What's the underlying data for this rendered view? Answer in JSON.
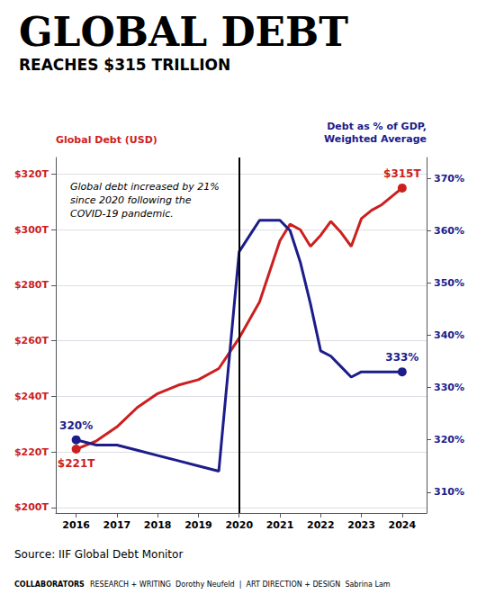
{
  "chart_data": {
    "type": "line",
    "title": "GLOBAL DEBT",
    "subtitle": "REACHES $315 TRILLION",
    "x": [
      2016,
      2016.5,
      2017,
      2017.5,
      2018,
      2018.5,
      2019,
      2019.5,
      2020,
      2020.5,
      2021,
      2021.25,
      2021.5,
      2021.75,
      2022,
      2022.25,
      2022.5,
      2022.75,
      2023,
      2023.25,
      2023.5,
      2023.75,
      2024
    ],
    "xlim": [
      2015.5,
      2024.6
    ],
    "xticks": [
      2016,
      2017,
      2018,
      2019,
      2020,
      2021,
      2022,
      2023,
      2024
    ],
    "ylabel": "Global Debt (USD)",
    "ylim": [
      198,
      326
    ],
    "yticks": [
      {
        "value": 200,
        "label": "$200T"
      },
      {
        "value": 220,
        "label": "$220T"
      },
      {
        "value": 240,
        "label": "$240T"
      },
      {
        "value": 260,
        "label": "$260T"
      },
      {
        "value": 280,
        "label": "$280T"
      },
      {
        "value": 300,
        "label": "$300T"
      },
      {
        "value": 320,
        "label": "$320T"
      }
    ],
    "y2label": "Debt as % of GDP,\nWeighted Average",
    "y2lim": [
      306,
      374
    ],
    "y2ticks": [
      {
        "value": 310,
        "label": "310%"
      },
      {
        "value": 320,
        "label": "320%"
      },
      {
        "value": 330,
        "label": "330%"
      },
      {
        "value": 340,
        "label": "340%"
      },
      {
        "value": 350,
        "label": "350%"
      },
      {
        "value": 360,
        "label": "360%"
      },
      {
        "value": 370,
        "label": "370%"
      }
    ],
    "grid": true,
    "series": [
      {
        "color": "#cc1f1f",
        "values": [
          221,
          224,
          229,
          236,
          241,
          244,
          246,
          250,
          261,
          274,
          296,
          302,
          300,
          294,
          298,
          303,
          299,
          294,
          304,
          307,
          309,
          312,
          315
        ],
        "value_labels": [
          "$221T",
          null,
          null,
          null,
          null,
          null,
          null,
          null,
          null,
          null,
          null,
          null,
          null,
          null,
          null,
          null,
          null,
          null,
          null,
          null,
          null,
          null,
          "$315T"
        ]
      },
      {
        "color": "#1c1c8a",
        "axis": "y2",
        "values": [
          320,
          319,
          319,
          318,
          317,
          316,
          315,
          314,
          356,
          362,
          362,
          360,
          354,
          346,
          337,
          336,
          334,
          332,
          333,
          333,
          333,
          333,
          333
        ],
        "value_labels": [
          "320%",
          null,
          null,
          null,
          null,
          null,
          null,
          null,
          null,
          null,
          null,
          null,
          null,
          null,
          null,
          null,
          null,
          null,
          null,
          null,
          null,
          null,
          "333%"
        ]
      }
    ],
    "vlines": [
      2020
    ],
    "annotations": [
      {
        "text": "Global debt increased by 21% since 2020 following the COVID-19 pandemic."
      }
    ],
    "footer": [
      "Source: IIF Global Debt Monitor",
      "COLLABORATORS",
      "RESEARCH + WRITING  Dorothy Neufeld  |  ART DIRECTION + DESIGN  Sabrina Lam"
    ]
  }
}
